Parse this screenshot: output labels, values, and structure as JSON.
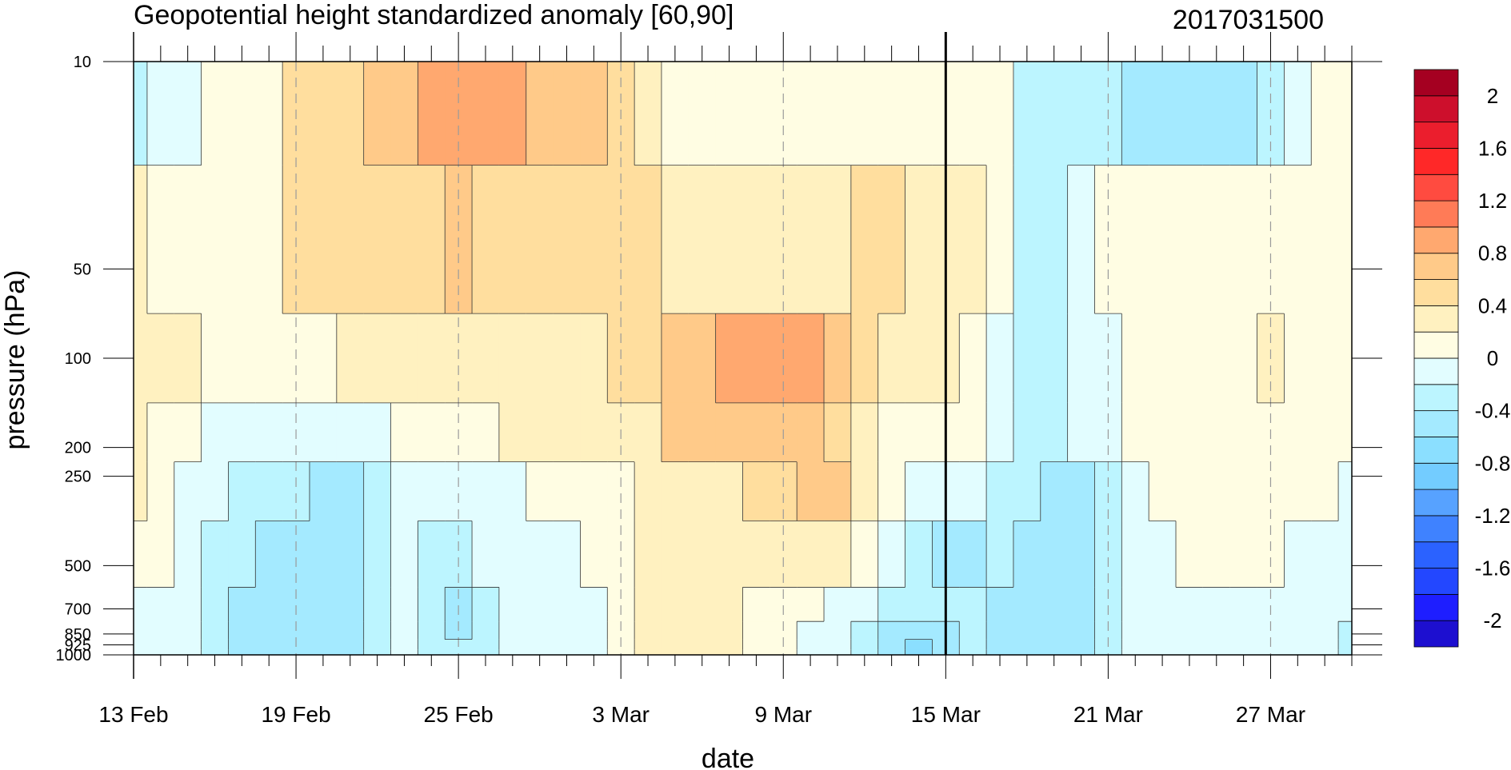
{
  "chart_data": {
    "type": "heatmap",
    "title": "Geopotential height standardized anomaly [60,90]",
    "date_label": "2017031500",
    "xlabel": "date",
    "ylabel": "pressure (hPa)",
    "x_dates": [
      "13 Feb",
      "14 Feb",
      "15 Feb",
      "16 Feb",
      "17 Feb",
      "18 Feb",
      "19 Feb",
      "20 Feb",
      "21 Feb",
      "22 Feb",
      "23 Feb",
      "24 Feb",
      "25 Feb",
      "26 Feb",
      "27 Feb",
      "28 Feb",
      "1 Mar",
      "2 Mar",
      "3 Mar",
      "4 Mar",
      "5 Mar",
      "6 Mar",
      "7 Mar",
      "8 Mar",
      "9 Mar",
      "10 Mar",
      "11 Mar",
      "12 Mar",
      "13 Mar",
      "14 Mar",
      "15 Mar",
      "16 Mar",
      "17 Mar",
      "18 Mar",
      "19 Mar",
      "20 Mar",
      "21 Mar",
      "22 Mar",
      "23 Mar",
      "24 Mar",
      "25 Mar",
      "26 Mar",
      "27 Mar",
      "28 Mar",
      "29 Mar",
      "30 Mar"
    ],
    "x_tick_labels": [
      "13 Feb",
      "19 Feb",
      "25 Feb",
      "3 Mar",
      "9 Mar",
      "15 Mar",
      "21 Mar",
      "27 Mar"
    ],
    "x_tick_index": [
      0,
      6,
      12,
      18,
      24,
      30,
      36,
      42
    ],
    "marker_date": "15 Mar",
    "levels_hPa": [
      10,
      50,
      100,
      200,
      250,
      500,
      700,
      850,
      925,
      1000
    ],
    "y_tick_labels": [
      "10",
      "50",
      "100",
      "200",
      "250",
      "500",
      "700",
      "850",
      "925",
      "1000"
    ],
    "values": [
      [
        -0.3,
        -0.1,
        -0.1,
        0.1,
        0.1,
        0.1,
        0.5,
        0.5,
        0.5,
        0.6,
        0.7,
        0.8,
        0.9,
        0.9,
        0.9,
        0.7,
        0.6,
        0.6,
        0.5,
        0.3,
        0.1,
        0.1,
        0.1,
        0.1,
        0.1,
        0.1,
        0.1,
        0.1,
        0.1,
        0.1,
        0.1,
        0.1,
        0.1,
        -0.3,
        -0.3,
        -0.3,
        -0.3,
        -0.5,
        -0.5,
        -0.5,
        -0.5,
        -0.5,
        -0.3,
        -0.1,
        0.1,
        0.1
      ],
      [
        0.3,
        0.1,
        0.1,
        0.1,
        0.1,
        0.1,
        0.5,
        0.5,
        0.5,
        0.5,
        0.5,
        0.5,
        0.6,
        0.5,
        0.5,
        0.5,
        0.5,
        0.5,
        0.5,
        0.4,
        0.3,
        0.3,
        0.3,
        0.3,
        0.3,
        0.3,
        0.3,
        0.4,
        0.4,
        0.3,
        0.3,
        0.3,
        0.1,
        -0.3,
        -0.3,
        -0.1,
        0.1,
        0.1,
        0.1,
        0.1,
        0.1,
        0.1,
        0.1,
        0.1,
        0.1,
        0.1
      ],
      [
        0.3,
        0.3,
        0.2,
        0.1,
        0.1,
        0.1,
        0.1,
        0.1,
        0.2,
        0.2,
        0.3,
        0.3,
        0.3,
        0.3,
        0.3,
        0.3,
        0.3,
        0.3,
        0.4,
        0.5,
        0.7,
        0.7,
        0.8,
        0.8,
        0.8,
        0.8,
        0.7,
        0.5,
        0.3,
        0.3,
        0.2,
        0.1,
        -0.1,
        -0.3,
        -0.3,
        -0.1,
        -0.1,
        0.1,
        0.1,
        0.1,
        0.1,
        0.1,
        0.3,
        0.1,
        0.1,
        0.1
      ],
      [
        0.2,
        0.1,
        0.1,
        -0.1,
        -0.1,
        -0.1,
        -0.2,
        -0.2,
        -0.2,
        -0.2,
        0.1,
        0.1,
        0.1,
        0.1,
        0.2,
        0.2,
        0.2,
        0.3,
        0.3,
        0.3,
        0.6,
        0.6,
        0.6,
        0.7,
        0.7,
        0.6,
        0.5,
        0.3,
        0.1,
        0.1,
        0.1,
        0.1,
        -0.1,
        -0.3,
        -0.3,
        -0.2,
        -0.1,
        0.1,
        0.1,
        0.1,
        0.1,
        0.1,
        0.1,
        0.1,
        0.1,
        0.1
      ],
      [
        0.3,
        0.1,
        -0.1,
        -0.1,
        -0.3,
        -0.3,
        -0.3,
        -0.5,
        -0.5,
        -0.3,
        -0.1,
        -0.1,
        -0.1,
        -0.1,
        -0.1,
        0.1,
        0.1,
        0.1,
        0.1,
        0.3,
        0.3,
        0.3,
        0.3,
        0.4,
        0.5,
        0.6,
        0.6,
        0.3,
        0.1,
        -0.1,
        -0.1,
        -0.1,
        -0.3,
        -0.3,
        -0.5,
        -0.5,
        -0.3,
        -0.1,
        0.1,
        0.1,
        0.1,
        0.1,
        0.1,
        0.1,
        0.1,
        -0.1
      ],
      [
        0.1,
        0.1,
        -0.1,
        -0.3,
        -0.3,
        -0.5,
        -0.5,
        -0.5,
        -0.5,
        -0.4,
        -0.1,
        -0.3,
        -0.3,
        -0.1,
        -0.1,
        -0.1,
        -0.1,
        0.1,
        0.1,
        0.3,
        0.3,
        0.3,
        0.3,
        0.3,
        0.3,
        0.3,
        0.2,
        0.1,
        -0.1,
        -0.3,
        -0.5,
        -0.5,
        -0.3,
        -0.5,
        -0.5,
        -0.5,
        -0.3,
        -0.1,
        -0.1,
        0.1,
        0.1,
        0.1,
        0.1,
        -0.1,
        -0.1,
        -0.1
      ],
      [
        -0.1,
        -0.1,
        -0.1,
        -0.3,
        -0.5,
        -0.5,
        -0.6,
        -0.6,
        -0.5,
        -0.3,
        -0.1,
        -0.3,
        -0.5,
        -0.3,
        -0.1,
        -0.1,
        -0.1,
        -0.1,
        0.1,
        0.3,
        0.3,
        0.3,
        0.3,
        0.1,
        0.1,
        0.1,
        -0.1,
        -0.1,
        -0.3,
        -0.3,
        -0.4,
        -0.4,
        -0.5,
        -0.6,
        -0.6,
        -0.5,
        -0.3,
        -0.1,
        -0.1,
        -0.1,
        -0.1,
        -0.1,
        -0.1,
        -0.1,
        -0.1,
        -0.1
      ],
      [
        -0.1,
        -0.1,
        -0.1,
        -0.3,
        -0.5,
        -0.6,
        -0.6,
        -0.6,
        -0.5,
        -0.3,
        -0.1,
        -0.3,
        -0.5,
        -0.3,
        -0.1,
        -0.1,
        -0.1,
        -0.1,
        0.1,
        0.3,
        0.3,
        0.3,
        0.3,
        0.1,
        0.1,
        -0.1,
        -0.1,
        -0.3,
        -0.5,
        -0.5,
        -0.5,
        -0.3,
        -0.5,
        -0.6,
        -0.6,
        -0.5,
        -0.3,
        -0.1,
        -0.1,
        -0.1,
        -0.1,
        -0.1,
        -0.1,
        -0.1,
        -0.1,
        -0.3
      ],
      [
        -0.1,
        -0.1,
        -0.1,
        -0.3,
        -0.5,
        -0.6,
        -0.6,
        -0.6,
        -0.5,
        -0.3,
        -0.1,
        -0.3,
        -0.4,
        -0.3,
        -0.1,
        -0.1,
        -0.1,
        -0.1,
        0.1,
        0.3,
        0.3,
        0.3,
        0.3,
        0.1,
        0.1,
        -0.1,
        -0.1,
        -0.3,
        -0.5,
        -0.7,
        -0.5,
        -0.3,
        -0.5,
        -0.6,
        -0.6,
        -0.5,
        -0.3,
        -0.1,
        -0.1,
        -0.1,
        -0.1,
        -0.1,
        -0.1,
        -0.1,
        -0.1,
        -0.3
      ],
      [
        -0.1,
        -0.1,
        -0.1,
        -0.3,
        -0.5,
        -0.6,
        -0.6,
        -0.6,
        -0.5,
        -0.3,
        -0.1,
        -0.3,
        -0.4,
        -0.3,
        -0.1,
        -0.1,
        -0.1,
        -0.1,
        0.1,
        0.3,
        0.3,
        0.3,
        0.3,
        0.1,
        0.1,
        -0.1,
        -0.1,
        -0.3,
        -0.5,
        -0.7,
        -0.5,
        -0.3,
        -0.5,
        -0.6,
        -0.6,
        -0.5,
        -0.3,
        -0.1,
        -0.1,
        -0.1,
        -0.1,
        -0.1,
        -0.1,
        -0.1,
        -0.1,
        -0.3
      ]
    ],
    "colorbar": {
      "ticks": [
        "2",
        "1.6",
        "1.2",
        "0.8",
        "0.4",
        "0",
        "-0.4",
        "-0.8",
        "-1.2",
        "-1.6",
        "-2"
      ],
      "bounds": [
        -2.2,
        -2,
        -1.8,
        -1.6,
        -1.4,
        -1.2,
        -1,
        -0.8,
        -0.6,
        -0.4,
        -0.2,
        0,
        0.2,
        0.4,
        0.6,
        0.8,
        1,
        1.2,
        1.4,
        1.6,
        1.8,
        2,
        2.2
      ],
      "colors": [
        "#1d0fd0",
        "#1e1eff",
        "#2347ff",
        "#2b62ff",
        "#3f82ff",
        "#57a2ff",
        "#73ccff",
        "#8bdfff",
        "#a4eaff",
        "#bcf5ff",
        "#e2fdff",
        "#fffde3",
        "#fff1c0",
        "#ffde9e",
        "#ffca89",
        "#ffa86f",
        "#ff7b57",
        "#ff4b40",
        "#ff2828",
        "#eb1e2d",
        "#cd0f2c",
        "#a50021"
      ]
    },
    "grid": "dashed vertical lines at labeled dates",
    "legend": "colorbar right"
  }
}
